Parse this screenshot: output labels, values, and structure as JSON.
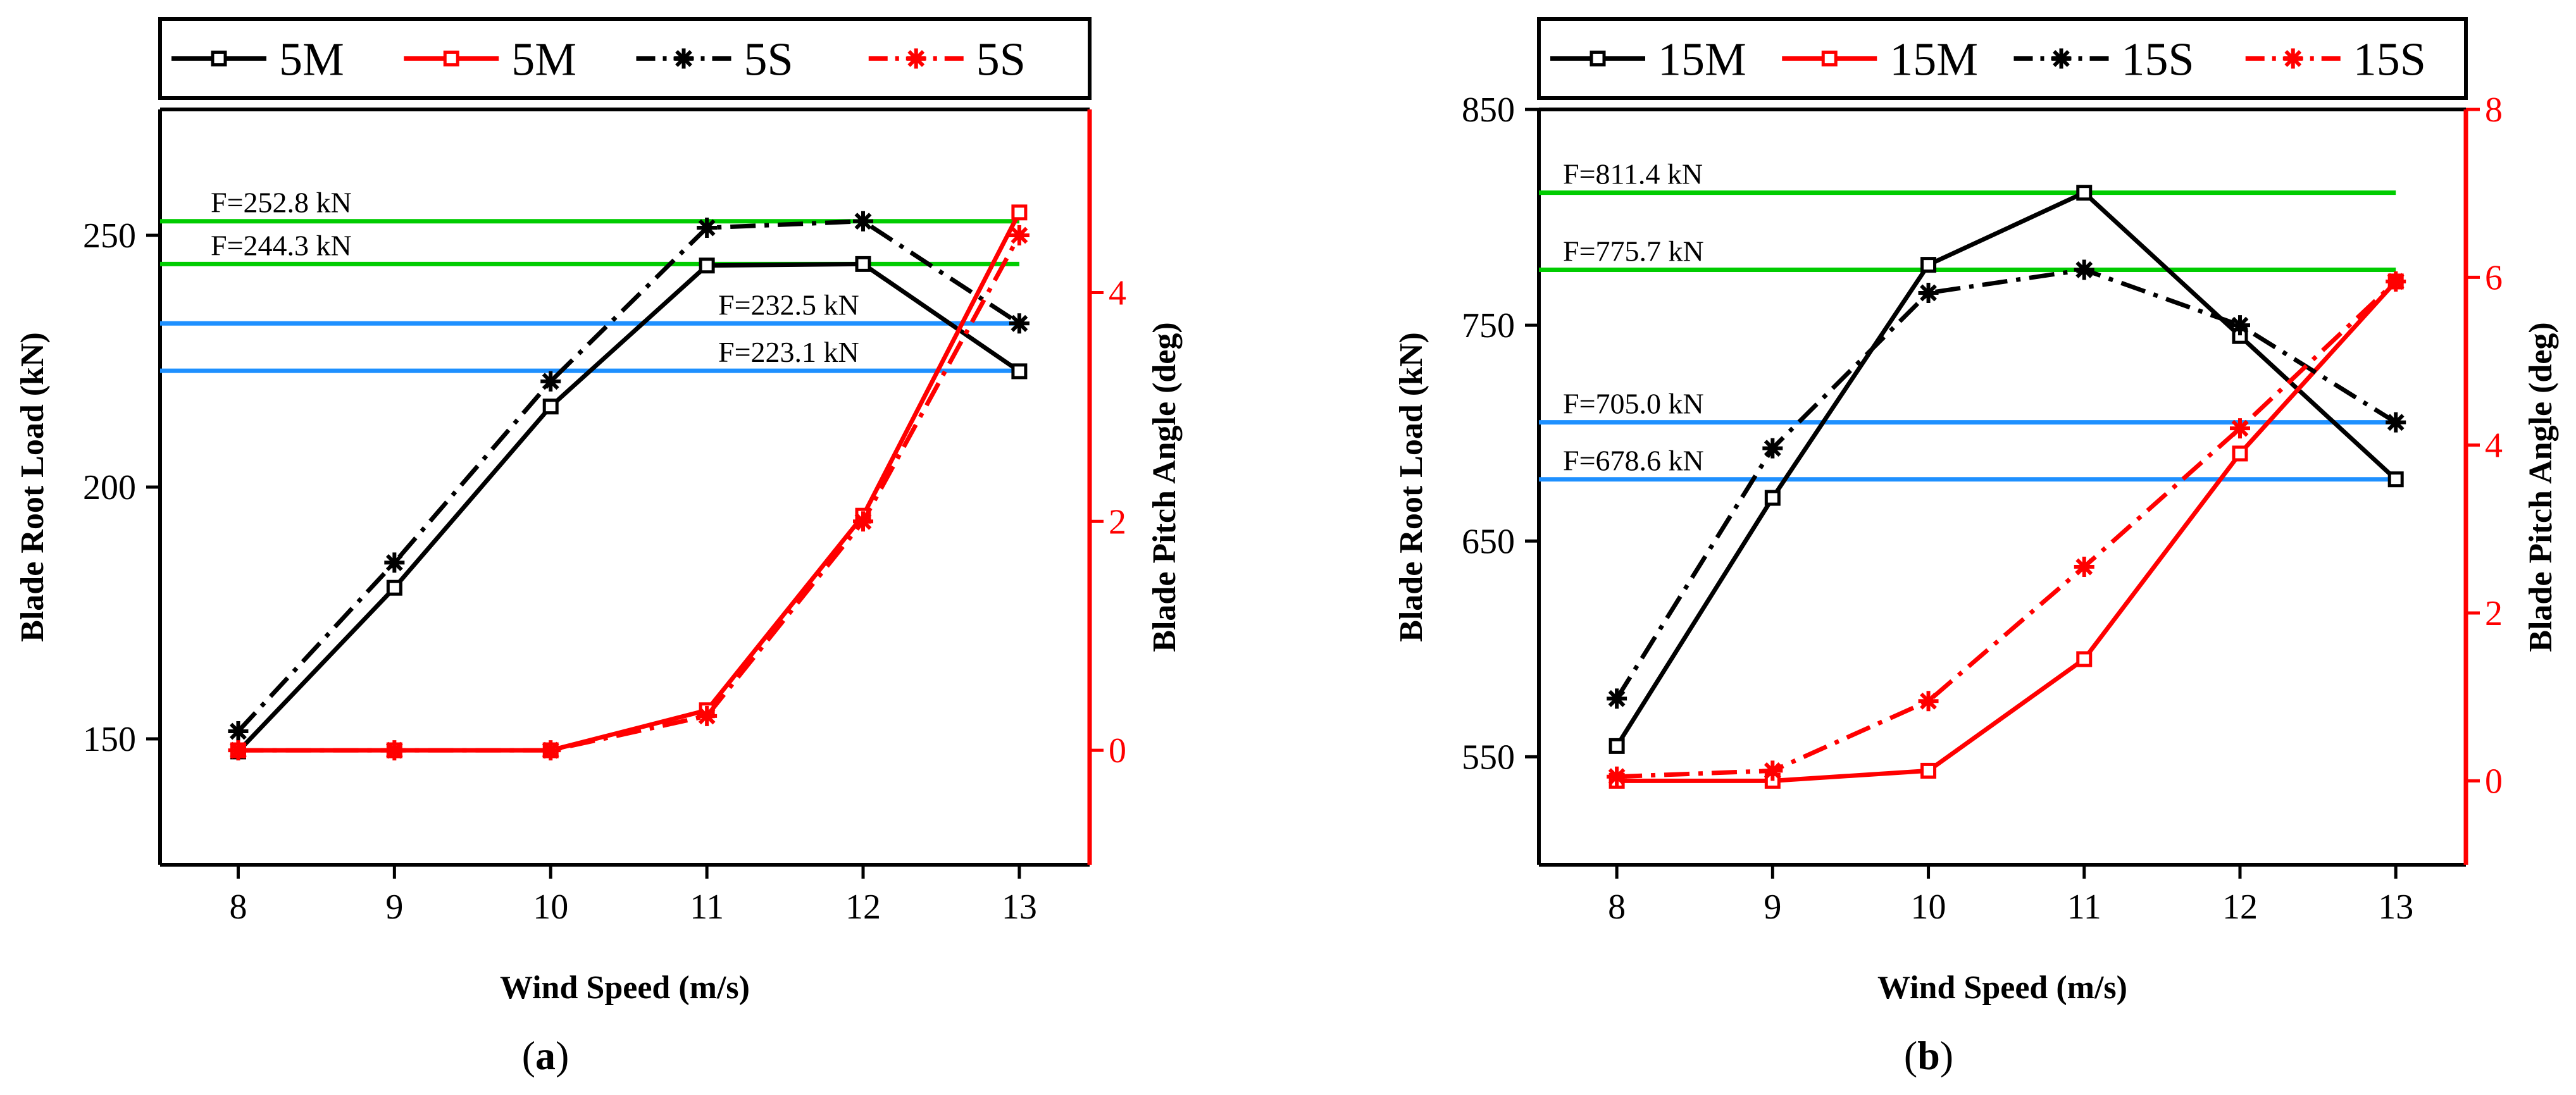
{
  "chart_data": [
    {
      "type": "line",
      "panel_label": "a",
      "xlabel": "Wind  Speed (m/s)",
      "ylabel_left": "Blade  Root  Load (kN)",
      "ylabel_right": "Blade  Pitch  Angle (deg)",
      "x": [
        8,
        9,
        10,
        11,
        12,
        13
      ],
      "x_ticks": [
        "8",
        "9",
        "10",
        "11",
        "12",
        "13"
      ],
      "xlim": [
        7.5,
        13.45
      ],
      "ylim_left": [
        125,
        275
      ],
      "yticks_left": [
        "150",
        "200",
        "250"
      ],
      "ylim_right": [
        -1.0,
        5.6
      ],
      "yticks_right": [
        "0",
        "2",
        "4"
      ],
      "legend": [
        "5M",
        "5M",
        "5S",
        "5S"
      ],
      "series": [
        {
          "name": "5M",
          "axis": "left",
          "style": "solid",
          "color": "#000000",
          "marker": "square",
          "values": [
            147.5,
            180,
            216,
            244,
            244.3,
            223
          ]
        },
        {
          "name": "5M",
          "axis": "right",
          "style": "solid",
          "color": "#ff0000",
          "marker": "square",
          "values": [
            0,
            0,
            0,
            0.35,
            2.05,
            4.7
          ]
        },
        {
          "name": "5S",
          "axis": "left",
          "style": "dashdot",
          "color": "#000000",
          "marker": "star",
          "values": [
            151.5,
            185,
            221,
            251.5,
            252.8,
            232.5
          ]
        },
        {
          "name": "5S",
          "axis": "right",
          "style": "dashdot",
          "color": "#ff0000",
          "marker": "star",
          "values": [
            0,
            0,
            0,
            0.3,
            2.0,
            4.5
          ]
        }
      ],
      "hlines": [
        {
          "label": "F=252.8 kN",
          "value": 252.8,
          "color": "#00cc00"
        },
        {
          "label": "F=244.3 kN",
          "value": 244.3,
          "color": "#00cc00"
        },
        {
          "label": "F=232.5 kN",
          "value": 232.5,
          "color": "#1e90ff"
        },
        {
          "label": "F=223.1 kN",
          "value": 223.1,
          "color": "#1e90ff"
        }
      ]
    },
    {
      "type": "line",
      "panel_label": "b",
      "xlabel": "Wind  Speed (m/s)",
      "ylabel_left": "Blade  Root  Load (kN)",
      "ylabel_right": "Blade  Pitch  Angle (deg)",
      "x": [
        8,
        9,
        10,
        11,
        12,
        13
      ],
      "x_ticks": [
        "8",
        "9",
        "10",
        "11",
        "12",
        "13"
      ],
      "xlim": [
        7.5,
        13.45
      ],
      "ylim_left": [
        500,
        850
      ],
      "yticks_left": [
        "550",
        "650",
        "750",
        "850"
      ],
      "ylim_right": [
        -1.0,
        8.0
      ],
      "yticks_right": [
        "0",
        "2",
        "4",
        "6",
        "8"
      ],
      "legend": [
        "15M",
        "15M",
        "15S",
        "15S"
      ],
      "series": [
        {
          "name": "15M",
          "axis": "left",
          "style": "solid",
          "color": "#000000",
          "marker": "square",
          "values": [
            555,
            670,
            778,
            811.4,
            745,
            678.6
          ]
        },
        {
          "name": "15M",
          "axis": "right",
          "style": "solid",
          "color": "#ff0000",
          "marker": "square",
          "values": [
            0,
            0,
            0.12,
            1.45,
            3.9,
            5.95
          ]
        },
        {
          "name": "15S",
          "axis": "left",
          "style": "dashdot",
          "color": "#000000",
          "marker": "star",
          "values": [
            577,
            693,
            765,
            775.7,
            750,
            705.0
          ]
        },
        {
          "name": "15S",
          "axis": "right",
          "style": "dashdot",
          "color": "#ff0000",
          "marker": "star",
          "values": [
            0.05,
            0.12,
            0.95,
            2.55,
            4.2,
            5.95
          ]
        }
      ],
      "hlines": [
        {
          "label": "F=811.4 kN",
          "value": 811.4,
          "color": "#00cc00"
        },
        {
          "label": "F=775.7 kN",
          "value": 775.7,
          "color": "#00cc00"
        },
        {
          "label": "F=705.0 kN",
          "value": 705.0,
          "color": "#1e90ff"
        },
        {
          "label": "F=678.6 kN",
          "value": 678.6,
          "color": "#1e90ff"
        }
      ]
    }
  ]
}
